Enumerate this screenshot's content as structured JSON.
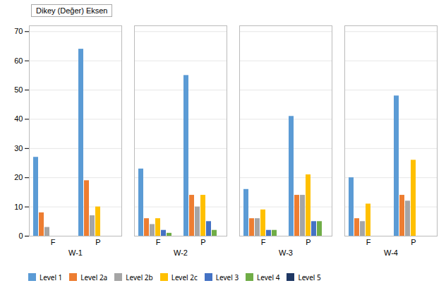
{
  "chart_data": {
    "type": "bar",
    "annotation": "Dikey (Değer) Eksen",
    "categories": [
      "F",
      "P",
      "F",
      "P",
      "F",
      "P",
      "F",
      "P"
    ],
    "group_labels": [
      "W-1",
      "W-2",
      "W-3",
      "W-4"
    ],
    "series": [
      {
        "name": "Level 1",
        "color": "#5B9BD5",
        "values": [
          27,
          64,
          23,
          55,
          16,
          41,
          20,
          48
        ]
      },
      {
        "name": "Level 2a",
        "color": "#ED7D31",
        "values": [
          8,
          19,
          6,
          14,
          6,
          14,
          6,
          14
        ]
      },
      {
        "name": "Level 2b",
        "color": "#A5A5A5",
        "values": [
          3,
          7,
          4,
          10,
          6,
          14,
          5,
          12
        ]
      },
      {
        "name": "Level 2c",
        "color": "#FFC000",
        "values": [
          0,
          10,
          6,
          14,
          9,
          21,
          11,
          26
        ]
      },
      {
        "name": "Level 3",
        "color": "#4472C4",
        "values": [
          0,
          0,
          2,
          5,
          2,
          5,
          0,
          0
        ]
      },
      {
        "name": "Level 4",
        "color": "#70AD47",
        "values": [
          0,
          0,
          1,
          2,
          2,
          5,
          0,
          0
        ]
      },
      {
        "name": "Level 5",
        "color": "#1F3864",
        "values": [
          0,
          0,
          0,
          0,
          0,
          0,
          0,
          0
        ]
      }
    ],
    "ylim": [
      0,
      72
    ],
    "yticks": [
      0,
      10,
      20,
      30,
      40,
      50,
      60,
      70
    ],
    "grid": true,
    "legend": "bottom"
  }
}
